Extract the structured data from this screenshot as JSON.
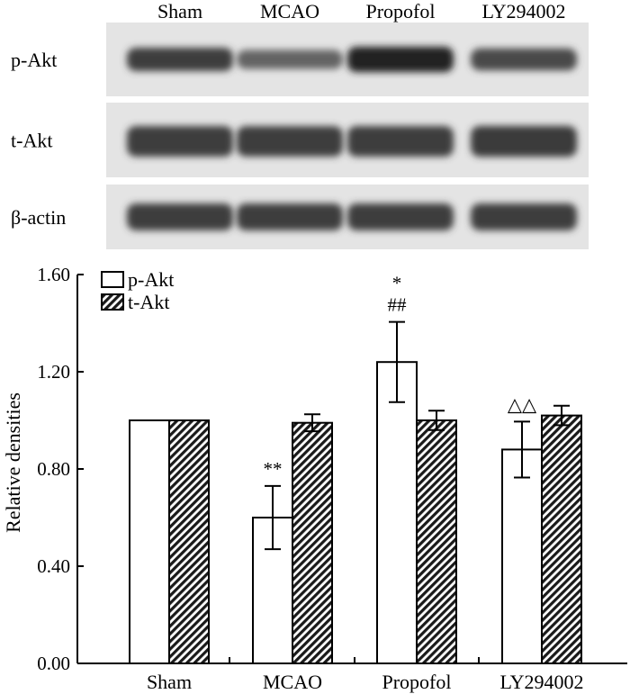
{
  "blot": {
    "lanes": [
      "Sham",
      "MCAO",
      "Propofol",
      "LY294002"
    ],
    "rows": [
      {
        "label": "p-Akt",
        "relative_intensity": [
          1.0,
          0.6,
          1.24,
          0.88
        ]
      },
      {
        "label": "t-Akt",
        "relative_intensity": [
          1.0,
          0.99,
          1.0,
          1.02
        ]
      },
      {
        "label": "β-actin",
        "relative_intensity": [
          1.0,
          1.0,
          1.0,
          1.0
        ]
      }
    ]
  },
  "chart_data": {
    "type": "bar",
    "categories": [
      "Sham",
      "MCAO",
      "Propofol",
      "LY294002"
    ],
    "series": [
      {
        "name": "p-Akt",
        "values": [
          1.0,
          0.6,
          1.24,
          0.88
        ],
        "errors": [
          0.0,
          0.13,
          0.165,
          0.115
        ],
        "fill": "white"
      },
      {
        "name": "t-Akt",
        "values": [
          1.0,
          0.99,
          1.0,
          1.02
        ],
        "errors": [
          0.0,
          0.035,
          0.04,
          0.04
        ],
        "fill": "hatched"
      }
    ],
    "ylabel": "Relative densities",
    "xlabel": "",
    "ylim": [
      0.0,
      1.6
    ],
    "yticks": [
      "0.00",
      "0.40",
      "0.80",
      "1.20",
      "1.60"
    ],
    "legend_position": "top-left",
    "annotations": [
      {
        "category": "MCAO",
        "series": "p-Akt",
        "lines": [
          "**"
        ]
      },
      {
        "category": "Propofol",
        "series": "p-Akt",
        "lines": [
          "*",
          "##"
        ]
      },
      {
        "category": "LY294002",
        "series": "p-Akt",
        "lines": [
          "△△"
        ]
      }
    ],
    "grid": false
  }
}
